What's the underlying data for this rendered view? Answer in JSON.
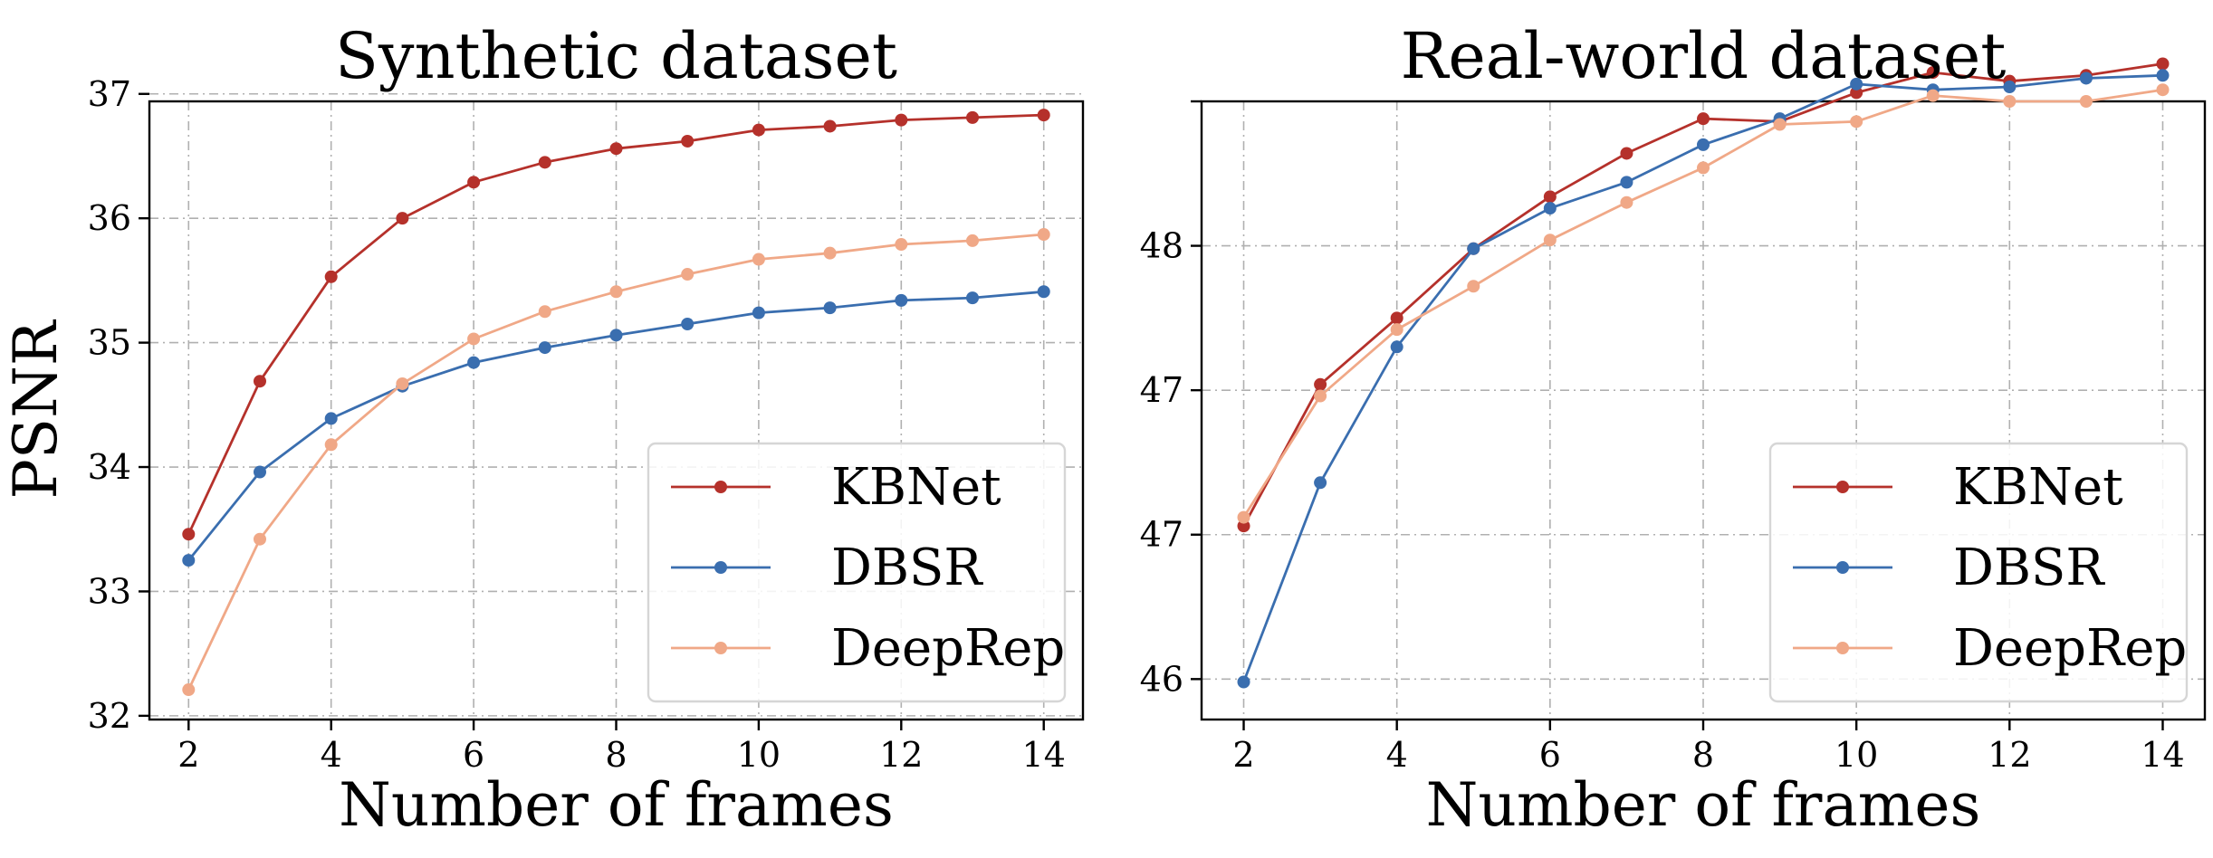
{
  "chart_data": [
    {
      "type": "line",
      "title": "Synthetic dataset",
      "xlabel": "Number of frames",
      "ylabel": "PSNR",
      "x": [
        2,
        3,
        4,
        5,
        6,
        7,
        8,
        9,
        10,
        11,
        12,
        13,
        14
      ],
      "xlim": [
        1.45,
        14.55
      ],
      "ylim": [
        31.97,
        36.94
      ],
      "xticks": [
        2,
        4,
        6,
        8,
        10,
        12,
        14
      ],
      "xtick_labels": [
        "2",
        "4",
        "6",
        "8",
        "10",
        "12",
        "14"
      ],
      "yticks": [
        32,
        33,
        34,
        35,
        36,
        37
      ],
      "ytick_labels": [
        "32",
        "33",
        "34",
        "35",
        "36",
        "37"
      ],
      "grid": true,
      "legend_position": "lower-right",
      "series": [
        {
          "name": "KBNet",
          "color": "#b5312b",
          "values": [
            33.46,
            34.69,
            35.53,
            36.0,
            36.29,
            36.45,
            36.56,
            36.62,
            36.71,
            36.74,
            36.79,
            36.81,
            36.83
          ]
        },
        {
          "name": "DBSR",
          "color": "#3a6eaf",
          "values": [
            33.25,
            33.96,
            34.39,
            34.65,
            34.84,
            34.96,
            35.06,
            35.15,
            35.24,
            35.28,
            35.34,
            35.36,
            35.41
          ]
        },
        {
          "name": "DeepRep",
          "color": "#f0a887",
          "values": [
            32.21,
            33.42,
            34.18,
            34.67,
            35.03,
            35.25,
            35.41,
            35.55,
            35.67,
            35.72,
            35.79,
            35.82,
            35.87
          ]
        }
      ]
    },
    {
      "type": "line",
      "title": "Real-world dataset",
      "xlabel": "Number of frames",
      "ylabel": "",
      "x": [
        2,
        3,
        4,
        5,
        6,
        7,
        8,
        9,
        10,
        11,
        12,
        13,
        14
      ],
      "xlim": [
        1.45,
        14.55
      ],
      "ylim": [
        0.72,
        5.0
      ],
      "xticks": [
        2,
        4,
        6,
        8,
        10,
        12,
        14
      ],
      "xtick_labels": [
        "2",
        "4",
        "6",
        "8",
        "10",
        "12",
        "14"
      ],
      "yticks": [
        1,
        2,
        3,
        4,
        5
      ],
      "ytick_labels": [
        "46",
        "47",
        "47",
        "48",
        ""
      ],
      "grid": true,
      "legend_position": "lower-right",
      "series": [
        {
          "name": "KBNet",
          "color": "#b5312b",
          "values": [
            2.06,
            3.04,
            3.5,
            3.98,
            4.34,
            4.64,
            4.88,
            4.86,
            5.06,
            5.2,
            5.14,
            5.18,
            5.26
          ]
        },
        {
          "name": "DBSR",
          "color": "#3a6eaf",
          "values": [
            0.98,
            2.36,
            3.3,
            3.98,
            4.26,
            4.44,
            4.7,
            4.88,
            5.12,
            5.08,
            5.1,
            5.16,
            5.18
          ]
        },
        {
          "name": "DeepRep",
          "color": "#f0a887",
          "values": [
            2.12,
            2.96,
            3.42,
            3.72,
            4.04,
            4.3,
            4.54,
            4.84,
            4.86,
            5.04,
            5.0,
            5.0,
            5.08
          ]
        }
      ]
    }
  ]
}
